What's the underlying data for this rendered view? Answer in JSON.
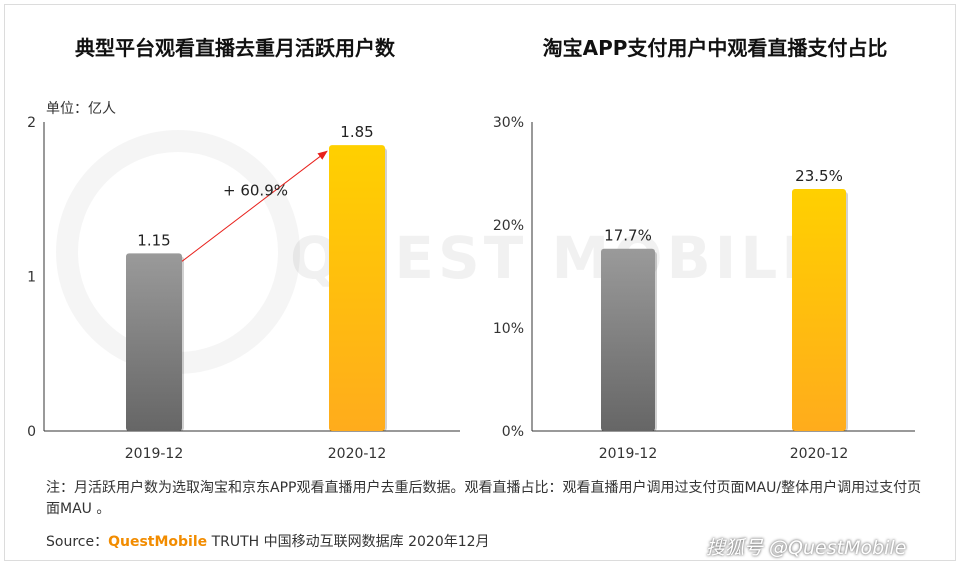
{
  "watermark_text": "QUEST MOBILE",
  "chart_data": [
    {
      "type": "bar",
      "title": "典型平台观看直播去重月活跃用户数",
      "unit_label": "单位：亿人",
      "categories": [
        "2019-12",
        "2020-12"
      ],
      "values": [
        1.15,
        1.85
      ],
      "value_labels": [
        "1.15",
        "1.85"
      ],
      "ylim": [
        0,
        2
      ],
      "yticks": [
        0,
        1,
        2
      ],
      "ytick_labels": [
        "0",
        "1",
        "2"
      ],
      "annotation": "+ 60.9%",
      "bar_colors": [
        "#8a8a8a",
        "#ffbe0b"
      ]
    },
    {
      "type": "bar",
      "title": "淘宝APP支付用户中观看直播支付占比",
      "categories": [
        "2019-12",
        "2020-12"
      ],
      "values": [
        17.7,
        23.5
      ],
      "value_labels": [
        "17.7%",
        "23.5%"
      ],
      "ylim": [
        0,
        30
      ],
      "yticks": [
        0,
        10,
        20,
        30
      ],
      "ytick_labels": [
        "0%",
        "10%",
        "20%",
        "30%"
      ],
      "bar_colors": [
        "#8a8a8a",
        "#ffbe0b"
      ]
    }
  ],
  "footnote": "注：月活跃用户数为选取淘宝和京东APP观看直播用户去重后数据。观看直播占比：观看直播用户调用过支付页面MAU/整体用户调用过支付页面MAU 。",
  "source": {
    "label": "Source：",
    "brand": "QuestMobile",
    "rest": " TRUTH 中国移动互联网数据库 2020年12月"
  },
  "corner_watermark": "搜狐号 @QuestMobile"
}
